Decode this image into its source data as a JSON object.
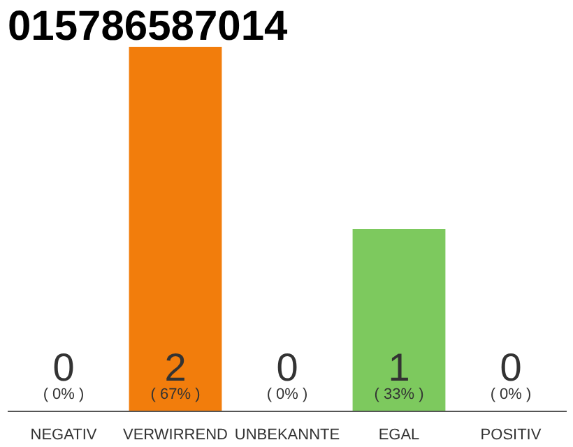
{
  "chart_data": {
    "type": "bar",
    "title": "015786587014",
    "categories": [
      "NEGATIV",
      "VERWIRREND",
      "UNBEKANNTE",
      "EGAL",
      "POSITIV"
    ],
    "values": [
      0,
      2,
      0,
      1,
      0
    ],
    "colors": [
      "#cccccc",
      "#f27d0c",
      "#cccccc",
      "#7dc95e",
      "#cccccc"
    ],
    "ylim": [
      0,
      2
    ],
    "tick_labels": "x",
    "value_labels": [
      "0\n( 0% )",
      "2\n( 67% )",
      "0\n( 0% )",
      "1\n( 33% )",
      "0\n( 0% )"
    ]
  }
}
